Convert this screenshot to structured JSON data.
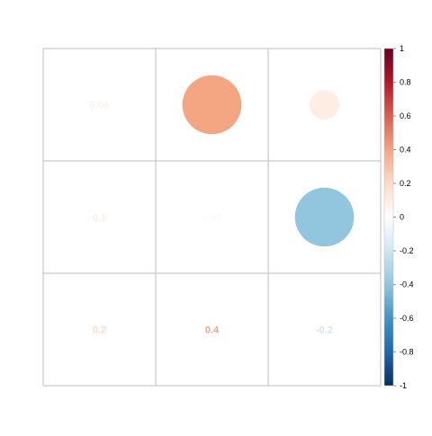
{
  "chart_data": {
    "type": "heatmap",
    "style": "mixed correlation plot: circles above diagonal, numbers on and below diagonal",
    "rows": 3,
    "cols": 3,
    "cells": [
      [
        {
          "value": 0.08,
          "label": "0.08",
          "display": "number"
        },
        {
          "value": 0.4,
          "label": "",
          "display": "circle"
        },
        {
          "value": 0.1,
          "label": "",
          "display": "circle"
        }
      ],
      [
        {
          "value": 0.1,
          "label": "0.1",
          "display": "number"
        },
        {
          "value": 0.03,
          "label": "0.03",
          "display": "number"
        },
        {
          "value": -0.4,
          "label": "",
          "display": "circle"
        }
      ],
      [
        {
          "value": 0.2,
          "label": "0.2",
          "display": "number"
        },
        {
          "value": 0.4,
          "label": "0.4",
          "display": "number"
        },
        {
          "value": -0.2,
          "label": "-0.2",
          "display": "number"
        }
      ]
    ],
    "colorbar": {
      "range": [
        -1,
        1
      ],
      "ticks": [
        "1",
        "0.8",
        "0.6",
        "0.4",
        "0.2",
        "0",
        "-0.2",
        "-0.4",
        "-0.6",
        "-0.8",
        "-1"
      ],
      "palette": [
        "#67001F",
        "#B2182B",
        "#D6604D",
        "#F4A582",
        "#FDDBC7",
        "#FFFFFF",
        "#D1E5F0",
        "#92C5DE",
        "#4393C3",
        "#2166AC",
        "#053061"
      ]
    },
    "grid": true,
    "grid_color": "#bebebe",
    "legend_position": "right"
  }
}
